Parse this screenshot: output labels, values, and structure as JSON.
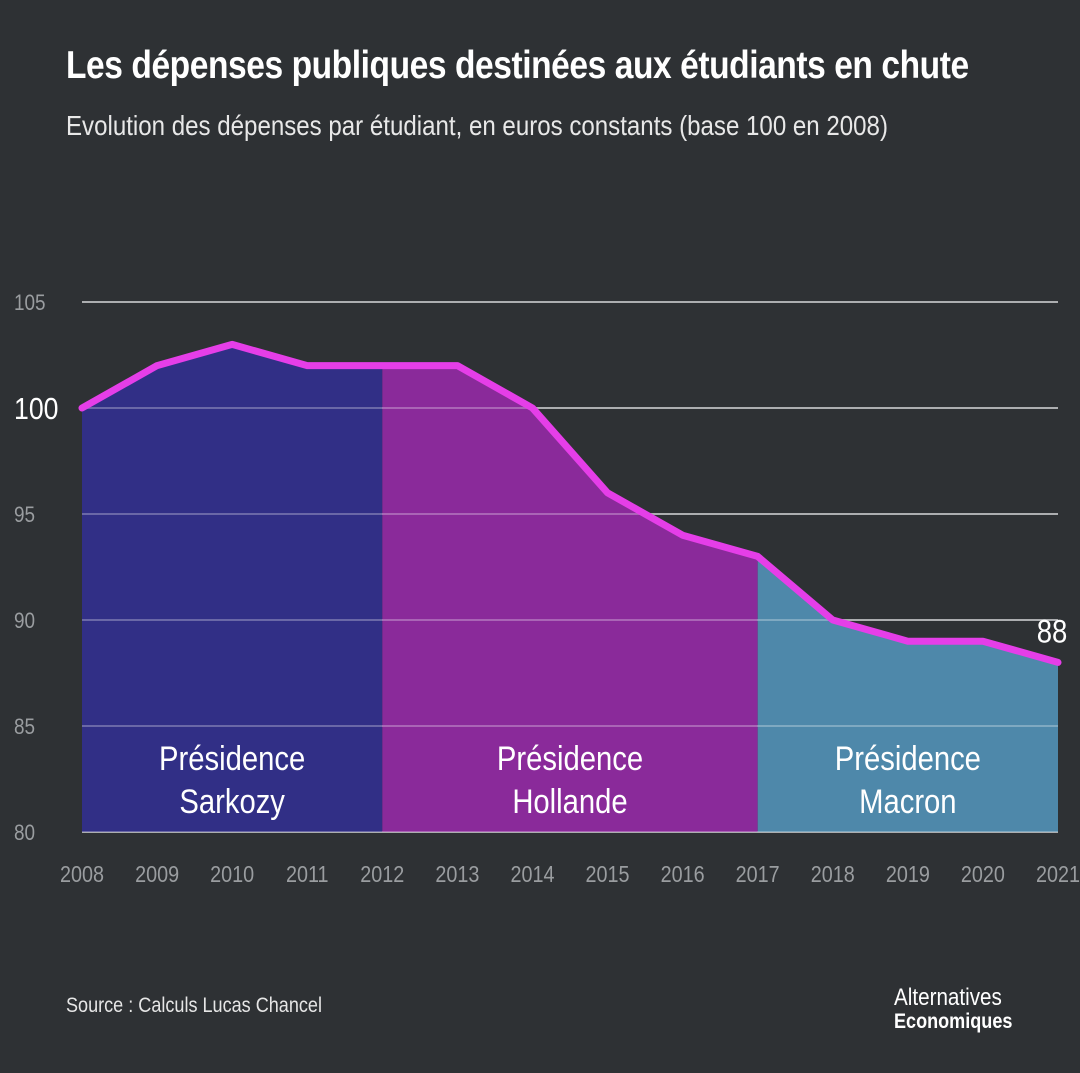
{
  "header": {
    "title": "Les dépenses publiques destinées aux étudiants en chute",
    "subtitle": "Evolution des dépenses par étudiant, en euros constants (base 100 en 2008)"
  },
  "chart_data": {
    "type": "area",
    "x": [
      "2008",
      "2009",
      "2010",
      "2011",
      "2012",
      "2013",
      "2014",
      "2015",
      "2016",
      "2017",
      "2018",
      "2019",
      "2020",
      "2021"
    ],
    "values": [
      100,
      102,
      103,
      102,
      102,
      102,
      100,
      96,
      94,
      93,
      90,
      89,
      89,
      88
    ],
    "ylim": [
      80,
      105
    ],
    "yticks": [
      "80",
      "85",
      "90",
      "95",
      "100",
      "105"
    ],
    "highlight_ytick": "100",
    "end_label": "88",
    "grid": true,
    "line_color": "#e53ee8",
    "regions": [
      {
        "label_line1": "Présidence",
        "label_line2": "Sarkozy",
        "start": "2008",
        "end": "2012",
        "color": "#312f86"
      },
      {
        "label_line1": "Présidence",
        "label_line2": "Hollande",
        "start": "2012",
        "end": "2017",
        "color": "#8a2a9a"
      },
      {
        "label_line1": "Présidence",
        "label_line2": "Macron",
        "start": "2017",
        "end": "2021",
        "color": "#4e88aa"
      }
    ]
  },
  "footer": {
    "source": "Source : Calculs Lucas Chancel",
    "brand_line1": "Alternatives",
    "brand_line2": "Economiques"
  }
}
